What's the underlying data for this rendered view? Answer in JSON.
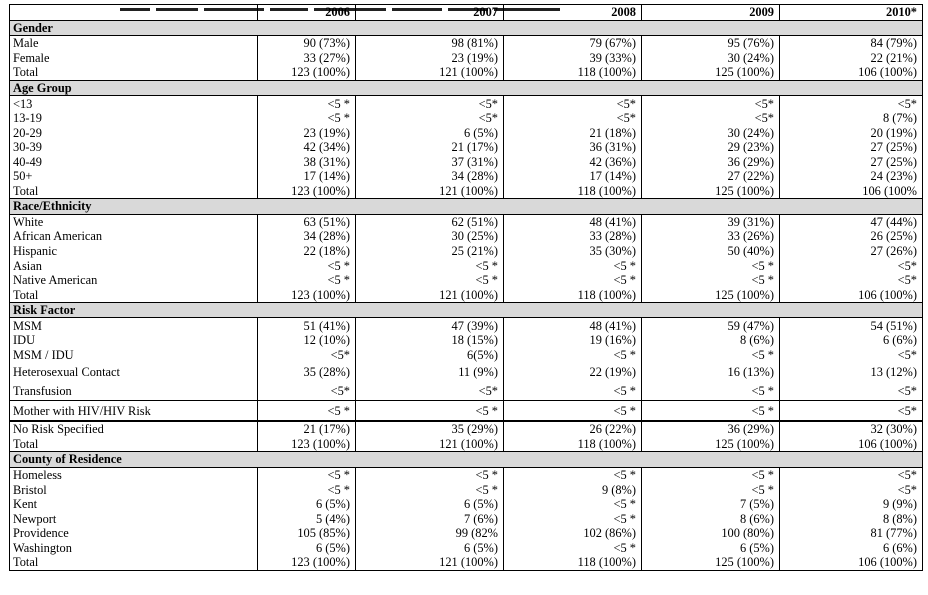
{
  "table": {
    "columns": [
      "",
      "2006",
      "2007",
      "2008",
      "2009",
      "2010*"
    ],
    "sections": [
      {
        "title": "Gender",
        "rows": [
          {
            "label": "Male",
            "values": [
              "90 (73%)",
              "98 (81%)",
              "79 (67%)",
              "95 (76%)",
              "84 (79%)"
            ]
          },
          {
            "label": "Female",
            "values": [
              "33 (27%)",
              "23 (19%)",
              "39 (33%)",
              "30 (24%)",
              "22 (21%)"
            ]
          },
          {
            "label": "Total",
            "values": [
              "123 (100%)",
              "121 (100%)",
              "118 (100%)",
              "125 (100%)",
              "106 (100%)"
            ]
          }
        ]
      },
      {
        "title": "Age Group",
        "rows": [
          {
            "label": "<13",
            "values": [
              "<5 *",
              "<5*",
              "<5*",
              "<5*",
              "<5*"
            ]
          },
          {
            "label": "13-19",
            "values": [
              "<5 *",
              "<5*",
              "<5*",
              "<5*",
              "8 (7%)"
            ]
          },
          {
            "label": "20-29",
            "values": [
              "23 (19%)",
              "6 (5%)",
              "21 (18%)",
              "30 (24%)",
              "20 (19%)"
            ]
          },
          {
            "label": "30-39",
            "values": [
              "42 (34%)",
              "21 (17%)",
              "36 (31%)",
              "29 (23%)",
              "27 (25%)"
            ]
          },
          {
            "label": "40-49",
            "values": [
              "38 (31%)",
              "37 (31%)",
              "42 (36%)",
              "36 (29%)",
              "27 (25%)"
            ]
          },
          {
            "label": "50+",
            "values": [
              "17 (14%)",
              "34 (28%)",
              "17 (14%)",
              "27 (22%)",
              "24 (23%)"
            ]
          },
          {
            "label": "Total",
            "values": [
              "123 (100%)",
              "121 (100%)",
              "118 (100%)",
              "125 (100%)",
              "106 (100%"
            ]
          }
        ]
      },
      {
        "title": "Race/Ethnicity",
        "rows": [
          {
            "label": "White",
            "values": [
              "63 (51%)",
              "62 (51%)",
              "48 (41%)",
              "39 (31%)",
              "47 (44%)"
            ]
          },
          {
            "label": "African American",
            "values": [
              "34 (28%)",
              "30 (25%)",
              "33 (28%)",
              "33 (26%)",
              "26 (25%)"
            ]
          },
          {
            "label": "Hispanic",
            "values": [
              "22 (18%)",
              "25 (21%)",
              "35 (30%)",
              "50 (40%)",
              "27 (26%)"
            ]
          },
          {
            "label": "Asian",
            "values": [
              "<5 *",
              "<5 *",
              "<5 *",
              "<5 *",
              "<5*"
            ]
          },
          {
            "label": "Native American",
            "values": [
              "<5 *",
              "<5 *",
              "<5 *",
              "<5 *",
              "<5*"
            ]
          },
          {
            "label": "Total",
            "values": [
              "123 (100%)",
              "121 (100%)",
              "118 (100%)",
              "125 (100%)",
              "106 (100%)"
            ]
          }
        ]
      },
      {
        "title": "Risk Factor",
        "rows": [
          {
            "label": "MSM",
            "values": [
              "51 (41%)",
              "47 (39%)",
              "48 (41%)",
              "59 (47%)",
              "54 (51%)"
            ]
          },
          {
            "label": "IDU",
            "values": [
              "12 (10%)",
              "18 (15%)",
              "19 (16%)",
              "8 (6%)",
              "6 (6%)"
            ]
          },
          {
            "label": "MSM / IDU",
            "values": [
              "<5*",
              "6(5%)",
              "<5 *",
              "<5 *",
              "<5*"
            ]
          },
          {
            "label": "Heterosexual Contact",
            "values": [
              "35 (28%)",
              "11 (9%)",
              "22 (19%)",
              "16 (13%)",
              "13 (12%)"
            ]
          },
          {
            "label": "Transfusion",
            "values": [
              "<5*",
              "<5*",
              "<5 *",
              "<5 *",
              "<5*"
            ]
          },
          {
            "label": "Mother with HIV/HIV Risk",
            "values": [
              "<5 *",
              "<5 *",
              "<5 *",
              "<5 *",
              "<5*"
            ]
          },
          {
            "label": "No Risk Specified",
            "values": [
              "21 (17%)",
              "35 (29%)",
              "26 (22%)",
              "36 (29%)",
              "32 (30%)"
            ]
          },
          {
            "label": "Total",
            "values": [
              "123 (100%)",
              "121 (100%)",
              "118 (100%)",
              "125 (100%)",
              "106 (100%)"
            ]
          }
        ]
      },
      {
        "title": "County of Residence",
        "rows": [
          {
            "label": "Homeless",
            "values": [
              "<5 *",
              "<5 *",
              "<5 *",
              "<5 *",
              "<5*"
            ]
          },
          {
            "label": "Bristol",
            "values": [
              "<5 *",
              "<5 *",
              "9 (8%)",
              "<5 *",
              "<5*"
            ]
          },
          {
            "label": "Kent",
            "values": [
              "6 (5%)",
              "6 (5%)",
              "<5 *",
              "7 (5%)",
              "9 (9%)"
            ]
          },
          {
            "label": "Newport",
            "values": [
              "5 (4%)",
              "7 (6%)",
              "<5 *",
              "8 (6%)",
              "8 (8%)"
            ]
          },
          {
            "label": "Providence",
            "values": [
              "105 (85%)",
              "99 (82%",
              "102 (86%)",
              "100 (80%)",
              "81 (77%)"
            ]
          },
          {
            "label": "Washington",
            "values": [
              "6 (5%)",
              "6 (5%)",
              "<5 *",
              "6 (5%)",
              "6 (6%)"
            ]
          },
          {
            "label": "Total",
            "values": [
              "123 (100%)",
              "121 (100%)",
              "118 (100%)",
              "125 (100%)",
              "106 (100%)"
            ]
          }
        ]
      }
    ]
  }
}
